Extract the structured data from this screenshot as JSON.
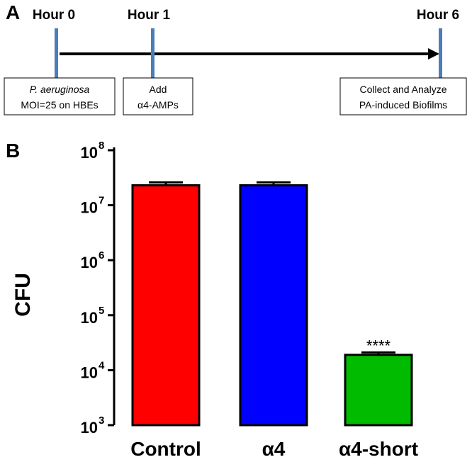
{
  "panel_a": {
    "label": "A",
    "timepoints": [
      {
        "label": "Hour 0"
      },
      {
        "label": "Hour 1"
      },
      {
        "label": "Hour 6"
      }
    ],
    "boxes": [
      {
        "line1": "P. aeruginosa",
        "line2": "MOI=25 on HBEs"
      },
      {
        "line1": "Add",
        "line2": "α4-AMPs"
      },
      {
        "line1": "Collect and Analyze",
        "line2": "PA-induced Biofilms"
      }
    ],
    "colors": {
      "marker": "#4a7ebb",
      "arrow": "#000000"
    }
  },
  "panel_b": {
    "label": "B"
  },
  "chart_data": {
    "type": "bar",
    "title": "",
    "xlabel": "",
    "ylabel": "CFU",
    "yscale": "log",
    "ylim": [
      1000,
      100000000
    ],
    "ytick_base": "10",
    "ytick_exponents": [
      "3",
      "4",
      "5",
      "6",
      "7",
      "8"
    ],
    "categories": [
      "Control",
      "α4",
      "α4-short"
    ],
    "values": [
      23000000,
      23000000,
      19000
    ],
    "errors_upper": [
      26000000,
      26000000,
      21000
    ],
    "colors": [
      "#ff0000",
      "#0000ff",
      "#00bb00"
    ],
    "annotations": [
      "",
      "",
      "****"
    ]
  }
}
